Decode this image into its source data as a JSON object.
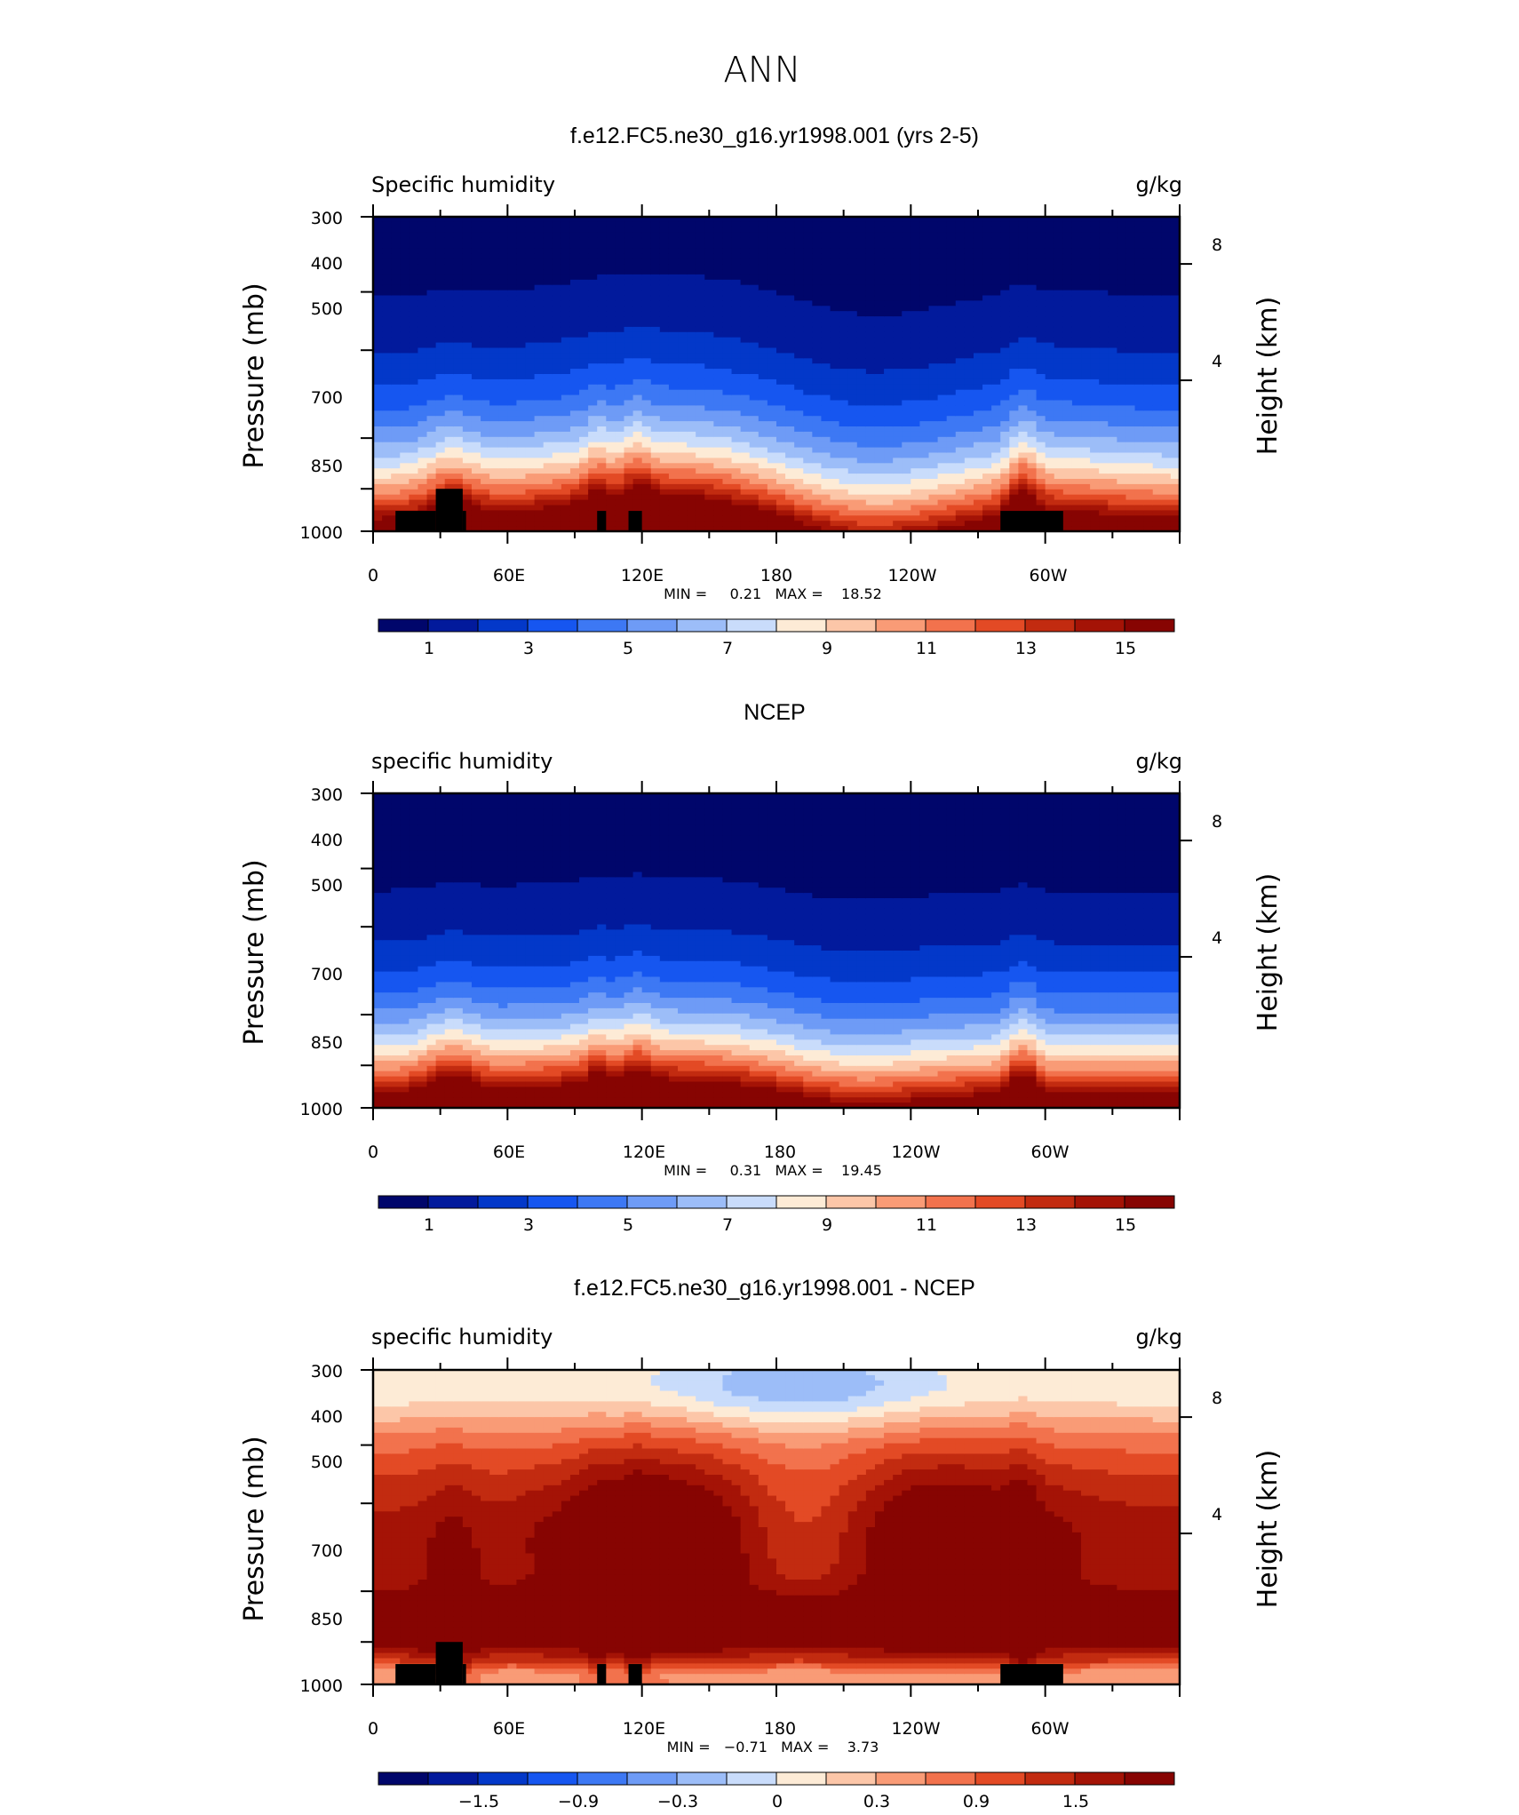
{
  "page": {
    "title": "ANN"
  },
  "colors": {
    "seq": [
      "#00066b",
      "#021a9c",
      "#0338c9",
      "#1656f0",
      "#3d78f4",
      "#6e9bf6",
      "#9cbdf8",
      "#c9dcfb",
      "#fdebd6",
      "#fcc6a8",
      "#f99b76",
      "#f2724d",
      "#e34a25",
      "#c22b10",
      "#a41306",
      "#870402"
    ],
    "div": [
      "#00066b",
      "#021a9c",
      "#0338c9",
      "#1656f0",
      "#3d78f4",
      "#6e9bf6",
      "#9cbdf8",
      "#c9dcfb",
      "#fdebd6",
      "#fcc6a8",
      "#f99b76",
      "#f2724d",
      "#e34a25",
      "#c22b10",
      "#a41306",
      "#870402"
    ]
  },
  "chart_data": [
    {
      "type": "heatmap",
      "title": "f.e12.FC5.ne30_g16.yr1998.001 (yrs 2-5)",
      "left_label": "Specific humidity",
      "right_label": "g/kg",
      "ylabel": "Pressure (mb)",
      "ylabel_right": "Height (km)",
      "y_ticks": [
        "300",
        "400",
        "500",
        "700",
        "850",
        "1000"
      ],
      "y_right_ticks": [
        "8",
        "4"
      ],
      "x_ticks": [
        "0",
        "60E",
        "120E",
        "180",
        "120W",
        "60W"
      ],
      "x_range": [
        0,
        360
      ],
      "y_range_mb": [
        1000,
        300
      ],
      "min_text": "MIN =     0.21   MAX =    18.52",
      "min": 0.21,
      "max": 18.52,
      "colorbar": {
        "ticks": [
          "1",
          "3",
          "5",
          "7",
          "9",
          "11",
          "13",
          "15"
        ]
      },
      "field": "model",
      "masked": true
    },
    {
      "type": "heatmap",
      "title": "NCEP",
      "left_label": "specific humidity",
      "right_label": "g/kg",
      "ylabel": "Pressure (mb)",
      "ylabel_right": "Height (km)",
      "y_ticks": [
        "300",
        "400",
        "500",
        "700",
        "850",
        "1000"
      ],
      "y_right_ticks": [
        "8",
        "4"
      ],
      "x_ticks": [
        "0",
        "60E",
        "120E",
        "180",
        "120W",
        "60W"
      ],
      "x_range": [
        0,
        360
      ],
      "y_range_mb": [
        1000,
        300
      ],
      "min_text": "MIN =     0.31   MAX =    19.45",
      "min": 0.31,
      "max": 19.45,
      "colorbar": {
        "ticks": [
          "1",
          "3",
          "5",
          "7",
          "9",
          "11",
          "13",
          "15"
        ]
      },
      "field": "obs",
      "masked": false
    },
    {
      "type": "heatmap",
      "title": "f.e12.FC5.ne30_g16.yr1998.001 - NCEP",
      "left_label": "specific humidity",
      "right_label": "g/kg",
      "ylabel": "Pressure (mb)",
      "ylabel_right": "Height (km)",
      "y_ticks": [
        "300",
        "400",
        "500",
        "700",
        "850",
        "1000"
      ],
      "y_right_ticks": [
        "8",
        "4"
      ],
      "x_ticks": [
        "0",
        "60E",
        "120E",
        "180",
        "120W",
        "60W"
      ],
      "x_range": [
        0,
        360
      ],
      "y_range_mb": [
        1000,
        300
      ],
      "min_text": "MIN =   −0.71   MAX =    3.73",
      "min": -0.71,
      "max": 3.73,
      "colorbar": {
        "ticks": [
          "−1.5",
          "−0.9",
          "−0.3",
          "0",
          "0.3",
          "0.9",
          "1.5"
        ]
      },
      "field": "diff",
      "masked": true
    }
  ]
}
